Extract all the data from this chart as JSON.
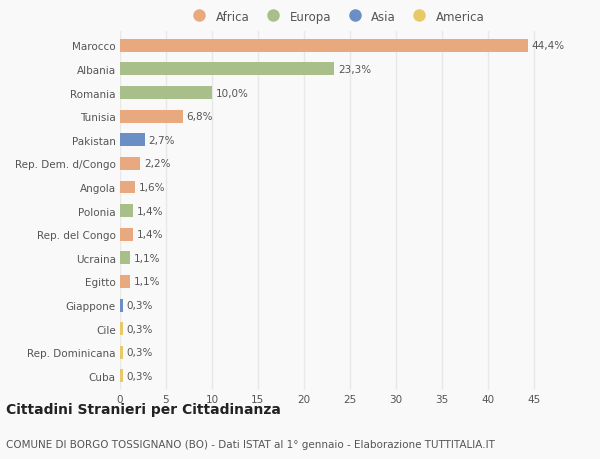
{
  "countries": [
    "Marocco",
    "Albania",
    "Romania",
    "Tunisia",
    "Pakistan",
    "Rep. Dem. d/Congo",
    "Angola",
    "Polonia",
    "Rep. del Congo",
    "Ucraina",
    "Egitto",
    "Giappone",
    "Cile",
    "Rep. Dominicana",
    "Cuba"
  ],
  "values": [
    44.4,
    23.3,
    10.0,
    6.8,
    2.7,
    2.2,
    1.6,
    1.4,
    1.4,
    1.1,
    1.1,
    0.3,
    0.3,
    0.3,
    0.3
  ],
  "labels": [
    "44,4%",
    "23,3%",
    "10,0%",
    "6,8%",
    "2,7%",
    "2,2%",
    "1,6%",
    "1,4%",
    "1,4%",
    "1,1%",
    "1,1%",
    "0,3%",
    "0,3%",
    "0,3%",
    "0,3%"
  ],
  "colors": [
    "#E8A97E",
    "#A8BF8A",
    "#A8BF8A",
    "#E8A97E",
    "#6B8EC4",
    "#E8A97E",
    "#E8A97E",
    "#A8BF8A",
    "#E8A97E",
    "#A8BF8A",
    "#E8A97E",
    "#6B8EC4",
    "#E8C96A",
    "#E8C96A",
    "#E8C96A"
  ],
  "legend": [
    {
      "label": "Africa",
      "color": "#E8A97E"
    },
    {
      "label": "Europa",
      "color": "#A8BF8A"
    },
    {
      "label": "Asia",
      "color": "#6B8EC4"
    },
    {
      "label": "America",
      "color": "#E8C96A"
    }
  ],
  "xlim": [
    0,
    47
  ],
  "xticks": [
    0,
    5,
    10,
    15,
    20,
    25,
    30,
    35,
    40,
    45
  ],
  "title": "Cittadini Stranieri per Cittadinanza",
  "subtitle": "COMUNE DI BORGO TOSSIGNANO (BO) - Dati ISTAT al 1° gennaio - Elaborazione TUTTITALIA.IT",
  "background_color": "#f9f9f9",
  "grid_color": "#e8e8e8",
  "bar_height": 0.55,
  "label_fontsize": 7.5,
  "tick_fontsize": 7.5,
  "title_fontsize": 10,
  "subtitle_fontsize": 7.5
}
